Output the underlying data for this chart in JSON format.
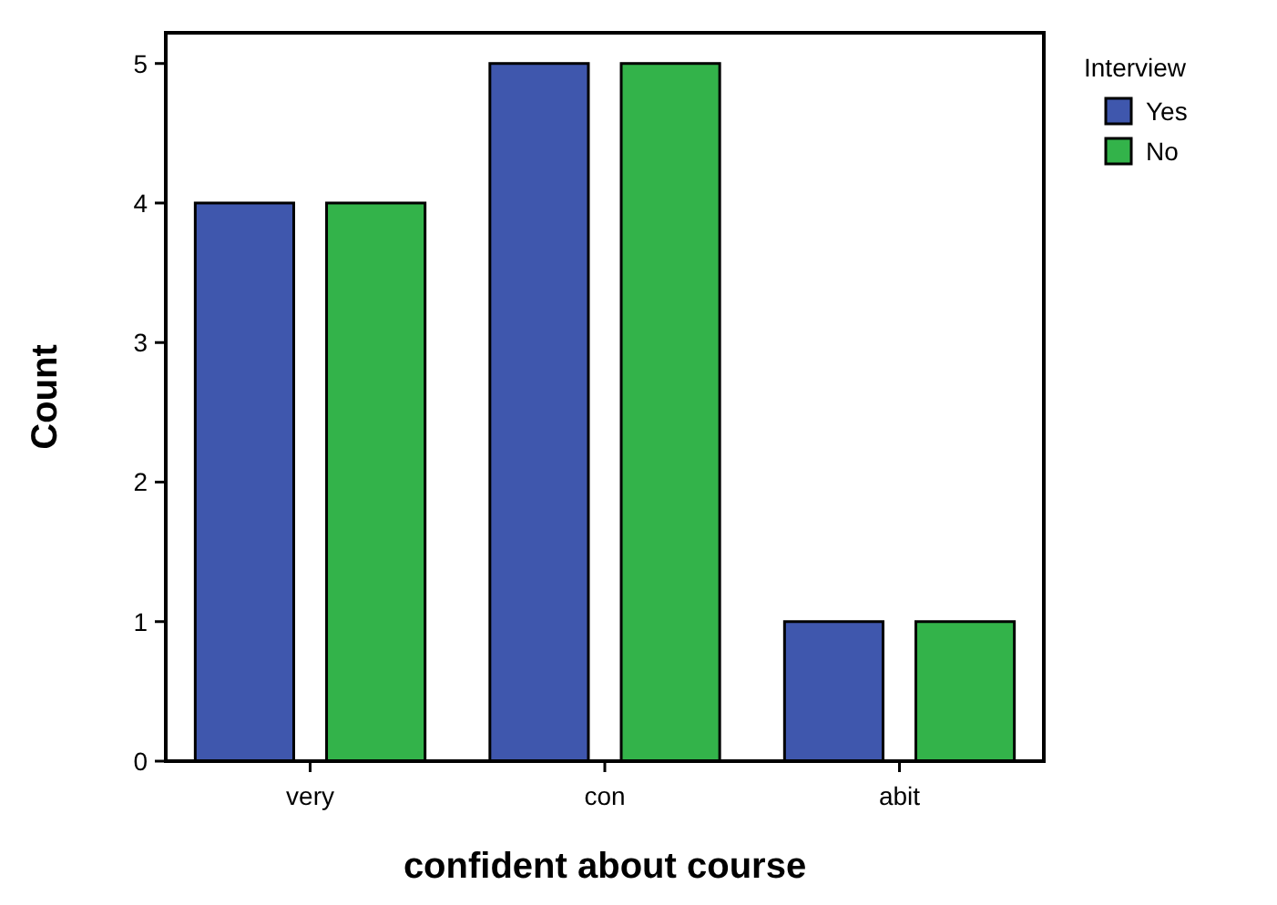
{
  "chart_data": {
    "type": "bar",
    "xlabel": "confident about course",
    "ylabel": "Count",
    "legend_title": "Interview",
    "categories": [
      "very",
      "con",
      "abit"
    ],
    "series": [
      {
        "name": "Yes",
        "color": "#3f57ad",
        "values": [
          4,
          5,
          1
        ]
      },
      {
        "name": "No",
        "color": "#33b34a",
        "values": [
          4,
          5,
          1
        ]
      }
    ],
    "ylim": [
      0,
      5.22
    ],
    "yticks": [
      0,
      1,
      2,
      3,
      4,
      5
    ],
    "grid": false,
    "legend": "top right"
  }
}
